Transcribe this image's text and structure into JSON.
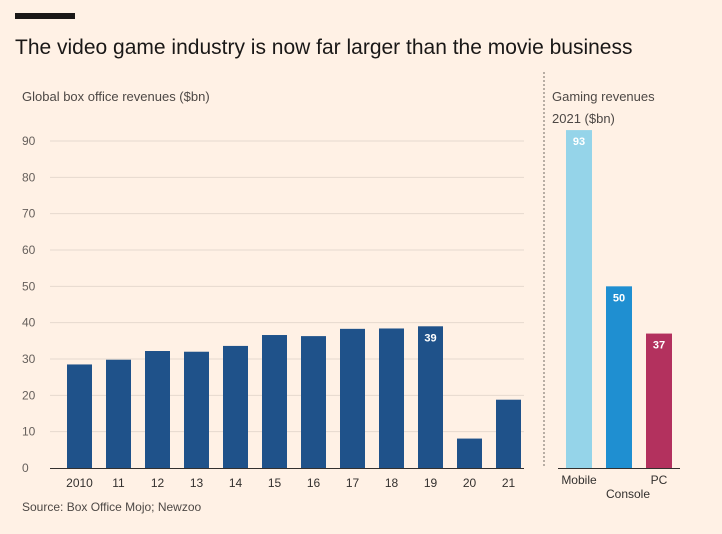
{
  "header": {
    "title": "The video game industry is now far larger than the movie business"
  },
  "footer": {
    "source": "Source: Box Office Mojo; Newzoo"
  },
  "chart_data": [
    {
      "type": "bar",
      "title": "",
      "ylabel": "Global box office revenues ($bn)",
      "categories": [
        "2010",
        "11",
        "12",
        "13",
        "14",
        "15",
        "16",
        "17",
        "18",
        "19",
        "20",
        "21"
      ],
      "values": [
        28.5,
        29.8,
        32.2,
        32.0,
        33.6,
        36.6,
        36.3,
        38.3,
        38.4,
        39,
        8.1,
        18.8
      ],
      "data_labels": {
        "19": "39"
      },
      "yticks": [
        0,
        10,
        20,
        30,
        40,
        50,
        60,
        70,
        80,
        90
      ],
      "ylim": [
        0,
        95
      ],
      "grid": true,
      "colors": {
        "bars": "#1f528a",
        "grid": "#e6d9ce"
      }
    },
    {
      "type": "bar",
      "title": "Gaming revenues\n2021 ($bn)",
      "categories": [
        "Mobile",
        "Console",
        "PC"
      ],
      "values": [
        93,
        50,
        37
      ],
      "data_labels": [
        "93",
        "50",
        "37"
      ],
      "ylim": [
        0,
        95
      ],
      "grid": false,
      "colors": {
        "bars": [
          "#95d4e9",
          "#1f8fd1",
          "#b3315e"
        ]
      }
    }
  ]
}
